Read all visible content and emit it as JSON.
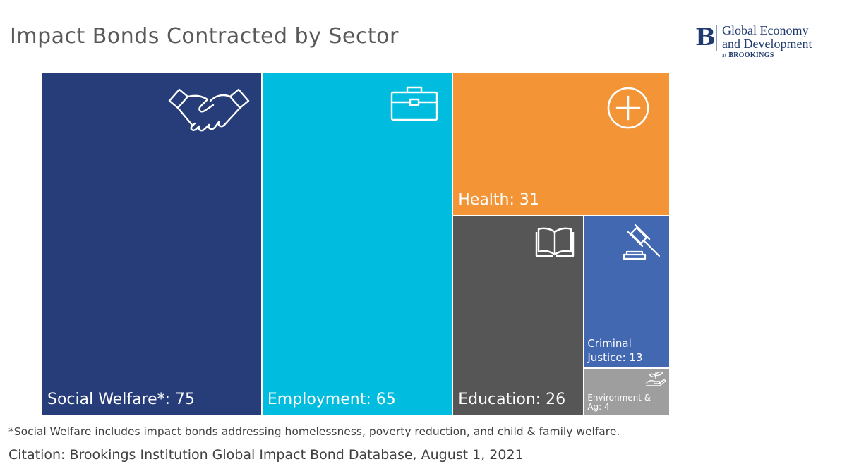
{
  "title": "Impact Bonds Contracted by Sector",
  "brand": {
    "mark": "B",
    "line1": "Global Economy",
    "line2": "and Development",
    "line3_prefix": "at",
    "line3_org": "BROOKINGS"
  },
  "chart_data": {
    "type": "treemap",
    "title": "Impact Bonds Contracted by Sector",
    "items": [
      {
        "label": "Social Welfare*",
        "value": 75,
        "display": "Social Welfare*: 75",
        "color": "#263d7a",
        "icon": "handshake-icon"
      },
      {
        "label": "Employment",
        "value": 65,
        "display": "Employment: 65",
        "color": "#00bcde",
        "icon": "briefcase-icon"
      },
      {
        "label": "Health",
        "value": 31,
        "display": "Health: 31",
        "color": "#f39536",
        "icon": "plus-circle-icon"
      },
      {
        "label": "Education",
        "value": 26,
        "display": "Education: 26",
        "color": "#565656",
        "icon": "book-icon"
      },
      {
        "label": "Criminal Justice",
        "value": 13,
        "display": "Criminal Justice: 13",
        "color": "#4368b2",
        "icon": "gavel-icon"
      },
      {
        "label": "Environment & Ag",
        "value": 4,
        "display": "Environment & Ag: 4",
        "color": "#9e9e9e",
        "icon": "plant-hand-icon"
      }
    ]
  },
  "footnote": "*Social Welfare includes impact bonds addressing homelessness, poverty reduction, and child & family welfare.",
  "citation": "Citation: Brookings Institution Global Impact Bond Database, August 1, 2021"
}
